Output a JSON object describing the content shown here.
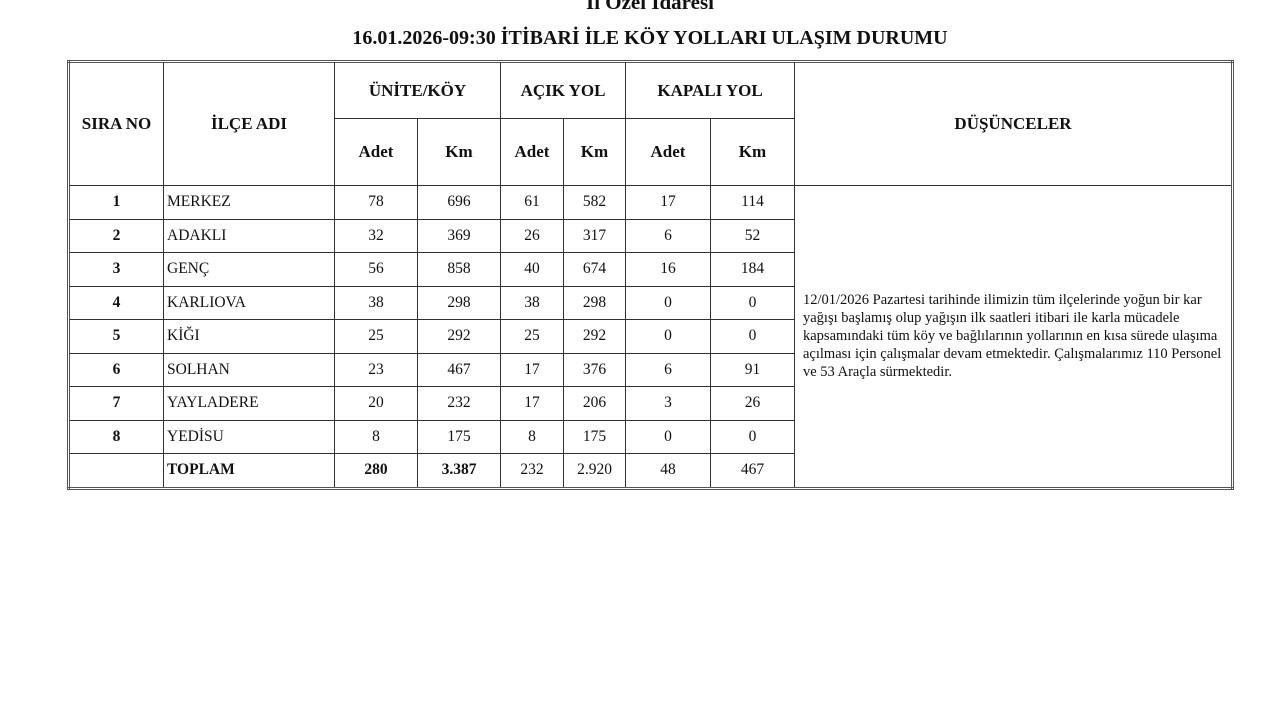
{
  "header": {
    "org": "İl Özel İdaresi",
    "title": "16.01.2026-09:30 İTİBARİ İLE KÖY YOLLARI ULAŞIM DURUMU"
  },
  "columns": {
    "sira": "SIRA NO",
    "ilce": "İLÇE ADI",
    "unite": "ÜNİTE/KÖY",
    "acik": "AÇIK YOL",
    "kapali": "KAPALI YOL",
    "dusunceler": "DÜŞÜNCELER",
    "adet": "Adet",
    "km": "Km"
  },
  "rows": [
    {
      "no": "1",
      "name": "MERKEZ",
      "u_adet": "78",
      "u_km": "696",
      "a_adet": "61",
      "a_km": "582",
      "k_adet": "17",
      "k_km": "114"
    },
    {
      "no": "2",
      "name": "ADAKLI",
      "u_adet": "32",
      "u_km": "369",
      "a_adet": "26",
      "a_km": "317",
      "k_adet": "6",
      "k_km": "52"
    },
    {
      "no": "3",
      "name": "GENÇ",
      "u_adet": "56",
      "u_km": "858",
      "a_adet": "40",
      "a_km": "674",
      "k_adet": "16",
      "k_km": "184"
    },
    {
      "no": "4",
      "name": "KARLIOVA",
      "u_adet": "38",
      "u_km": "298",
      "a_adet": "38",
      "a_km": "298",
      "k_adet": "0",
      "k_km": "0"
    },
    {
      "no": "5",
      "name": "KİĞI",
      "u_adet": "25",
      "u_km": "292",
      "a_adet": "25",
      "a_km": "292",
      "k_adet": "0",
      "k_km": "0"
    },
    {
      "no": "6",
      "name": "SOLHAN",
      "u_adet": "23",
      "u_km": "467",
      "a_adet": "17",
      "a_km": "376",
      "k_adet": "6",
      "k_km": "91"
    },
    {
      "no": "7",
      "name": "YAYLADERE",
      "u_adet": "20",
      "u_km": "232",
      "a_adet": "17",
      "a_km": "206",
      "k_adet": "3",
      "k_km": "26"
    },
    {
      "no": "8",
      "name": "YEDİSU",
      "u_adet": "8",
      "u_km": "175",
      "a_adet": "8",
      "a_km": "175",
      "k_adet": "0",
      "k_km": "0"
    }
  ],
  "total": {
    "label": "TOPLAM",
    "u_adet": "280",
    "u_km": "3.387",
    "a_adet": "232",
    "a_km": "2.920",
    "k_adet": "48",
    "k_km": "467"
  },
  "note": "12/01/2026 Pazartesi tarihinde ilimizin tüm ilçelerinde yoğun bir kar yağışı başlamış olup yağışın ilk saatleri itibari ile karla mücadele kapsamındaki tüm köy ve bağlılarının yollarının en kısa sürede ulaşıma açılması için çalışmalar devam etmektedir. Çalışmalarımız 110 Personel ve 53 Araçla sürmektedir."
}
